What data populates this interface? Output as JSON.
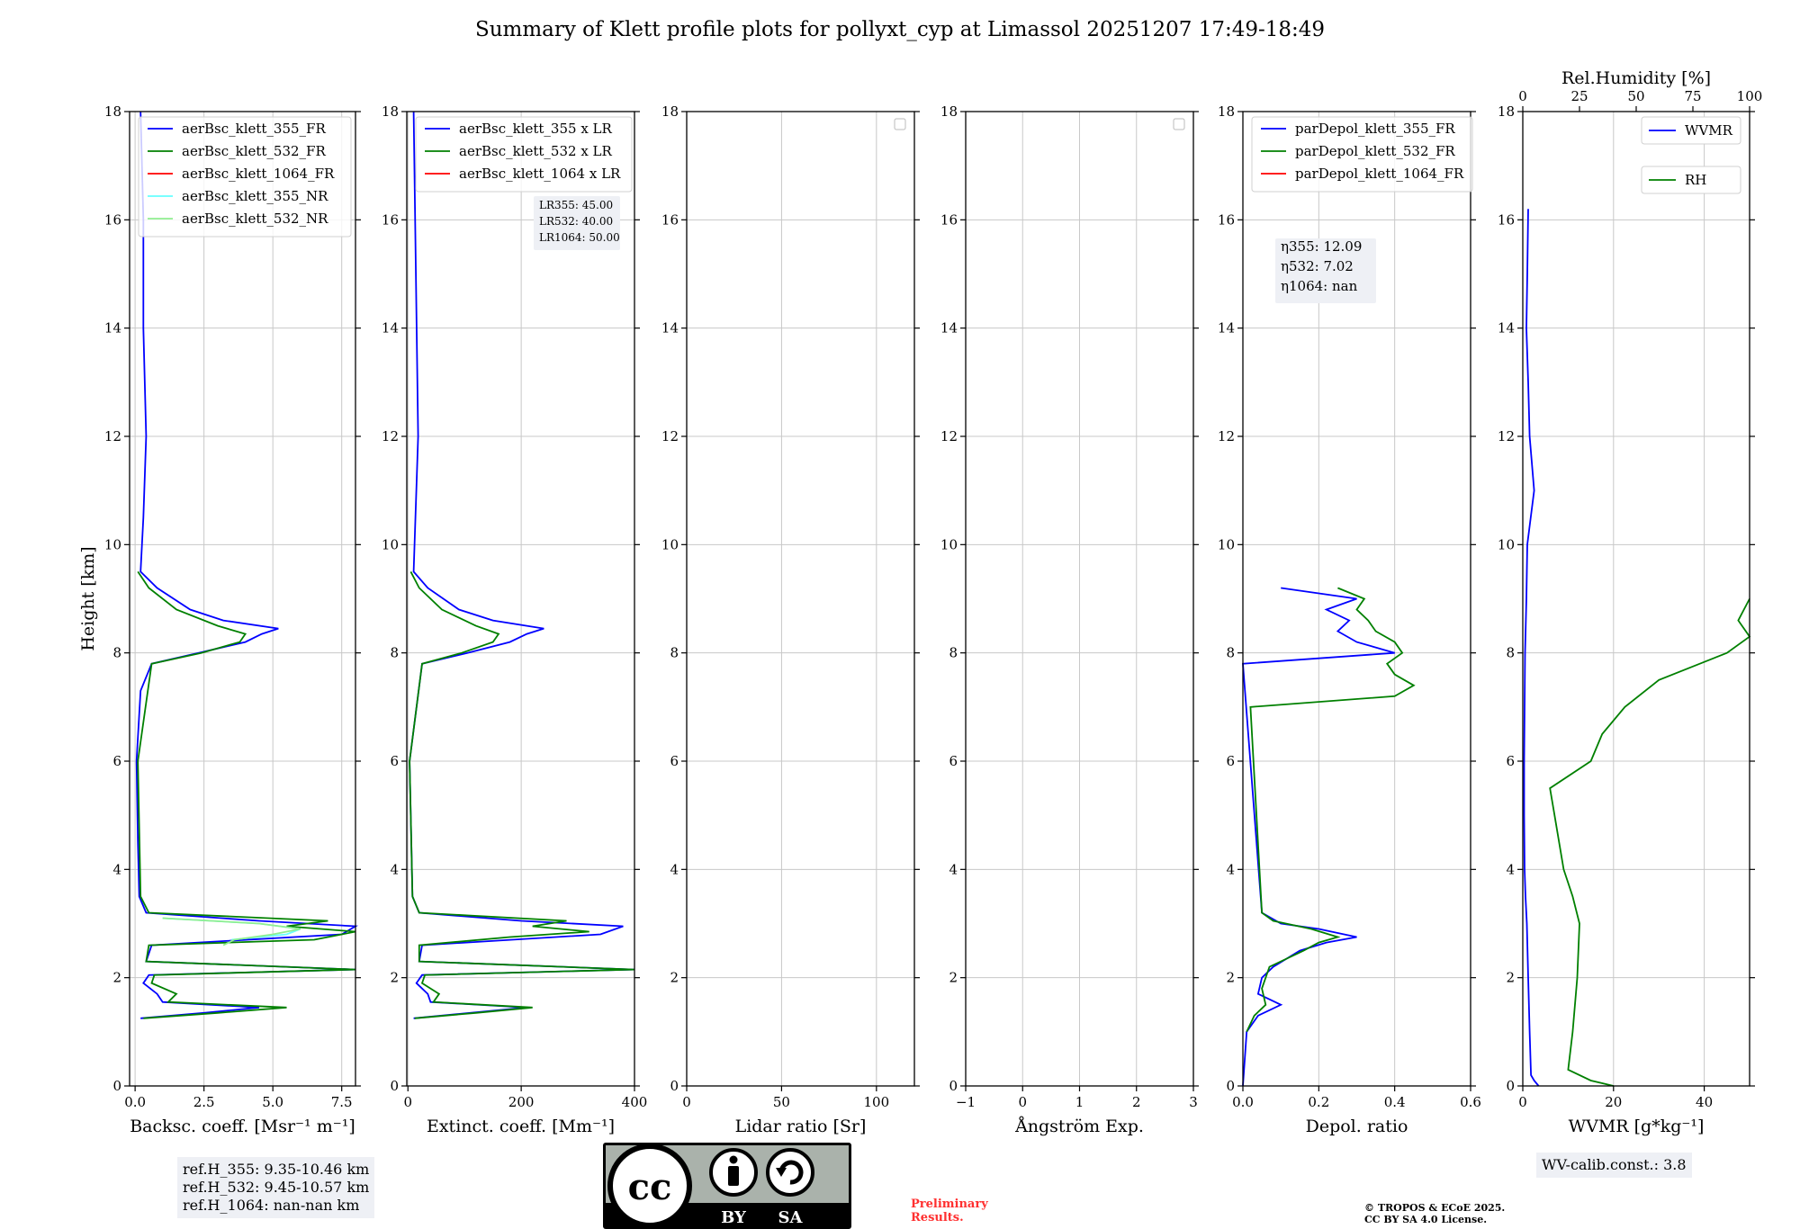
{
  "title": "Summary of Klett profile plots for pollyxt_cyp at Limassol 20251207 17:49-18:49",
  "colors": {
    "ch355": "#0000ff",
    "ch532": "#008000",
    "ch1064": "#ff0000",
    "nr355": "#66ffff",
    "nr532": "#90ee90",
    "prelim": "#ff3030"
  },
  "info": {
    "ref_h": [
      "ref.H_355: 9.35-10.46 km",
      "ref.H_532: 9.45-10.57 km",
      "ref.H_1064: nan-nan km"
    ],
    "wv_calib": "WV-calib.const.: 3.8",
    "prelim": [
      "Preliminary",
      "Results."
    ],
    "copyright": [
      "© TROPOS & ECoE 2025.",
      "CC BY SA 4.0 License."
    ],
    "cc_badge": {
      "cc": "cc",
      "by": "BY",
      "sa": "SA"
    }
  },
  "chart_data": [
    {
      "type": "line",
      "id": "bsc",
      "xlabel": "Backsc. coeff. [Msr⁻¹ m⁻¹]",
      "ylabel": "Height [km]",
      "xlim": [
        -0.2,
        8.0
      ],
      "ylim": [
        0,
        18
      ],
      "xticks": [
        "0.0",
        "2.5",
        "5.0",
        "7.5"
      ],
      "xtick_values": [
        0,
        2.5,
        5,
        7.5
      ],
      "yticks": [
        "0",
        "2",
        "4",
        "6",
        "8",
        "10",
        "12",
        "14",
        "16",
        "18"
      ],
      "legend": [
        "aerBsc_klett_355_FR",
        "aerBsc_klett_532_FR",
        "aerBsc_klett_1064_FR",
        "aerBsc_klett_355_NR",
        "aerBsc_klett_532_NR"
      ],
      "legend_colors": [
        "#0000ff",
        "#008000",
        "#ff0000",
        "#66ffff",
        "#90ee90"
      ],
      "series": [
        {
          "name": "aerBsc_klett_355_FR",
          "color": "#0000ff",
          "h": [
            1.25,
            1.35,
            1.45,
            1.55,
            1.7,
            1.9,
            2.05,
            2.15,
            2.3,
            2.6,
            2.8,
            2.95,
            3.05,
            3.2,
            3.5,
            4.5,
            6.0,
            7.3,
            7.8,
            8.0,
            8.2,
            8.35,
            8.45,
            8.6,
            8.8,
            9.2,
            9.5,
            10.5,
            12.0,
            14.0,
            16.0,
            18.0
          ],
          "x": [
            0.2,
            2.5,
            4.5,
            1.0,
            0.8,
            0.3,
            0.5,
            8.0,
            0.4,
            0.6,
            7.5,
            8.0,
            4.5,
            0.4,
            0.15,
            0.1,
            0.05,
            0.2,
            0.6,
            2.3,
            4.0,
            4.6,
            5.2,
            3.2,
            2.0,
            0.8,
            0.2,
            0.3,
            0.4,
            0.3,
            0.3,
            0.2
          ]
        },
        {
          "name": "aerBsc_klett_532_FR",
          "color": "#008000",
          "h": [
            1.25,
            1.35,
            1.45,
            1.55,
            1.7,
            1.9,
            2.05,
            2.15,
            2.3,
            2.6,
            2.7,
            2.85,
            2.95,
            3.05,
            3.2,
            3.5,
            6.0,
            7.8,
            8.0,
            8.2,
            8.35,
            8.5,
            8.8,
            9.2,
            9.5
          ],
          "x": [
            0.3,
            3.0,
            5.5,
            1.2,
            1.5,
            0.6,
            0.7,
            8.0,
            0.4,
            0.5,
            6.5,
            8.0,
            5.5,
            7.0,
            0.5,
            0.2,
            0.1,
            0.6,
            2.4,
            3.8,
            4.0,
            3.0,
            1.5,
            0.5,
            0.1
          ]
        },
        {
          "name": "aerBsc_klett_355_NR",
          "color": "#66ffff",
          "h": [
            2.7,
            2.8,
            2.9,
            3.0,
            3.1
          ],
          "x": [
            3.5,
            5.5,
            6.0,
            4.5,
            1.0
          ]
        },
        {
          "name": "aerBsc_klett_532_NR",
          "color": "#90ee90",
          "h": [
            2.6,
            2.7,
            2.8,
            2.9,
            3.0,
            3.1
          ],
          "x": [
            3.2,
            3.6,
            5.0,
            6.0,
            4.5,
            1.0
          ]
        }
      ]
    },
    {
      "type": "line",
      "id": "ext",
      "xlabel": "Extinct. coeff. [Mm⁻¹]",
      "xlim": [
        -2,
        400
      ],
      "ylim": [
        0,
        18
      ],
      "xticks": [
        "0",
        "200",
        "400"
      ],
      "xtick_values": [
        0,
        200,
        400
      ],
      "yticks": [
        "0",
        "2",
        "4",
        "6",
        "8",
        "10",
        "12",
        "14",
        "16",
        "18"
      ],
      "legend": [
        "aerBsc_klett_355 x LR",
        "aerBsc_klett_532 x LR",
        "aerBsc_klett_1064 x LR"
      ],
      "legend_colors": [
        "#0000ff",
        "#008000",
        "#ff0000"
      ],
      "annotation": [
        "LR355: 45.00",
        "LR532: 40.00",
        "LR1064: 50.00"
      ],
      "series": [
        {
          "name": "aerBsc_klett_355 x LR",
          "color": "#0000ff",
          "h": [
            1.25,
            1.35,
            1.45,
            1.55,
            1.7,
            1.9,
            2.05,
            2.15,
            2.3,
            2.6,
            2.8,
            2.95,
            3.05,
            3.2,
            3.5,
            6.0,
            7.8,
            8.0,
            8.2,
            8.35,
            8.45,
            8.6,
            8.8,
            9.2,
            9.5,
            12.0,
            18.0
          ],
          "x": [
            10,
            110,
            210,
            40,
            35,
            15,
            25,
            400,
            20,
            25,
            340,
            380,
            200,
            20,
            8,
            3,
            25,
            105,
            180,
            210,
            240,
            150,
            90,
            35,
            10,
            18,
            10
          ]
        },
        {
          "name": "aerBsc_klett_532 x LR",
          "color": "#008000",
          "h": [
            1.25,
            1.35,
            1.45,
            1.55,
            1.7,
            1.9,
            2.05,
            2.15,
            2.3,
            2.6,
            2.75,
            2.85,
            2.95,
            3.05,
            3.2,
            3.5,
            6.0,
            7.8,
            8.0,
            8.2,
            8.35,
            8.5,
            8.8,
            9.2,
            9.5
          ],
          "x": [
            12,
            120,
            220,
            45,
            55,
            25,
            30,
            400,
            20,
            20,
            180,
            320,
            220,
            280,
            20,
            8,
            3,
            25,
            95,
            150,
            160,
            120,
            60,
            20,
            5
          ]
        }
      ]
    },
    {
      "type": "line",
      "id": "lr",
      "xlabel": "Lidar ratio [Sr]",
      "xlim": [
        0,
        120
      ],
      "ylim": [
        0,
        18
      ],
      "xticks": [
        "0",
        "50",
        "100"
      ],
      "xtick_values": [
        0,
        50,
        100
      ],
      "yticks": [
        "0",
        "2",
        "4",
        "6",
        "8",
        "10",
        "12",
        "14",
        "16",
        "18"
      ],
      "series": []
    },
    {
      "type": "line",
      "id": "ae",
      "xlabel": "Ångström Exp.",
      "xlim": [
        -1,
        3
      ],
      "ylim": [
        0,
        18
      ],
      "xticks": [
        "−1",
        "0",
        "1",
        "2",
        "3"
      ],
      "xtick_values": [
        -1,
        0,
        1,
        2,
        3
      ],
      "yticks": [
        "0",
        "2",
        "4",
        "6",
        "8",
        "10",
        "12",
        "14",
        "16",
        "18"
      ],
      "series": []
    },
    {
      "type": "line",
      "id": "depol",
      "xlabel": "Depol. ratio",
      "xlim": [
        0,
        0.6
      ],
      "ylim": [
        0,
        18
      ],
      "xticks": [
        "0.0",
        "0.2",
        "0.4",
        "0.6"
      ],
      "xtick_values": [
        0,
        0.2,
        0.4,
        0.6
      ],
      "yticks": [
        "0",
        "2",
        "4",
        "6",
        "8",
        "10",
        "12",
        "14",
        "16",
        "18"
      ],
      "legend": [
        "parDepol_klett_355_FR",
        "parDepol_klett_532_FR",
        "parDepol_klett_1064_FR"
      ],
      "legend_colors": [
        "#0000ff",
        "#008000",
        "#ff0000"
      ],
      "annotation": [
        "η355: 12.09",
        "η532: 7.02",
        "η1064: nan"
      ],
      "series": [
        {
          "name": "parDepol_klett_355_FR",
          "color": "#0000ff",
          "h": [
            0.0,
            1.0,
            1.3,
            1.5,
            1.7,
            2.0,
            2.2,
            2.5,
            2.65,
            2.75,
            2.9,
            3.0,
            3.2,
            7.8,
            8.0,
            8.2,
            8.4,
            8.6,
            8.8,
            9.0,
            9.2
          ],
          "x": [
            0.0,
            0.01,
            0.04,
            0.1,
            0.04,
            0.05,
            0.08,
            0.15,
            0.22,
            0.3,
            0.2,
            0.1,
            0.05,
            0.0,
            0.4,
            0.3,
            0.25,
            0.28,
            0.22,
            0.3,
            0.1
          ]
        },
        {
          "name": "parDepol_klett_532_FR",
          "color": "#008000",
          "h": [
            1.0,
            1.3,
            1.5,
            1.8,
            2.0,
            2.2,
            2.5,
            2.65,
            2.75,
            2.9,
            3.05,
            3.2,
            7.0,
            7.2,
            7.4,
            7.6,
            7.8,
            8.0,
            8.2,
            8.4,
            8.6,
            8.8,
            9.0,
            9.2
          ],
          "x": [
            0.01,
            0.03,
            0.06,
            0.05,
            0.06,
            0.07,
            0.16,
            0.2,
            0.25,
            0.18,
            0.08,
            0.05,
            0.02,
            0.4,
            0.45,
            0.4,
            0.38,
            0.42,
            0.4,
            0.35,
            0.33,
            0.3,
            0.32,
            0.25
          ]
        }
      ]
    },
    {
      "type": "line",
      "id": "wv",
      "xlabel": "WVMR [g*kg⁻¹]",
      "x2label": "Rel.Humidity [%]",
      "xlim": [
        0,
        50
      ],
      "x2lim": [
        0,
        100
      ],
      "ylim": [
        0,
        18
      ],
      "xticks": [
        "0",
        "20",
        "40"
      ],
      "xtick_values": [
        0,
        20,
        40
      ],
      "x2ticks": [
        "0",
        "25",
        "50",
        "75",
        "100"
      ],
      "x2tick_values": [
        0,
        25,
        50,
        75,
        100
      ],
      "yticks": [
        "0",
        "2",
        "4",
        "6",
        "8",
        "10",
        "12",
        "14",
        "16",
        "18"
      ],
      "legend": [
        "WVMR",
        "RH"
      ],
      "legend_colors": [
        "#0000ff",
        "#008000"
      ],
      "series": [
        {
          "name": "WVMR",
          "color": "#0000ff",
          "h": [
            0.0,
            0.1,
            0.2,
            1.0,
            2.0,
            3.0,
            3.5,
            4.0,
            5.0,
            6.0,
            7.0,
            8.0,
            9.0,
            10.0,
            11.0,
            12.0,
            13.0,
            14.0,
            15.0,
            16.2
          ],
          "x": [
            3.5,
            2.5,
            1.8,
            1.5,
            1.2,
            0.9,
            0.6,
            0.4,
            0.3,
            0.3,
            0.4,
            0.5,
            0.8,
            1.0,
            2.5,
            1.5,
            1.2,
            0.8,
            1.0,
            1.2
          ]
        },
        {
          "name": "RH",
          "color": "#008000",
          "h": [
            0.0,
            0.1,
            0.3,
            1.0,
            2.0,
            3.0,
            3.5,
            4.0,
            5.0,
            5.5,
            6.0,
            6.5,
            7.0,
            7.5,
            8.0,
            8.3,
            8.6,
            9.0
          ],
          "x": [
            40,
            30,
            20,
            22,
            24,
            25,
            22,
            18,
            14,
            12,
            30,
            35,
            45,
            60,
            90,
            100,
            95,
            100
          ]
        }
      ]
    }
  ]
}
